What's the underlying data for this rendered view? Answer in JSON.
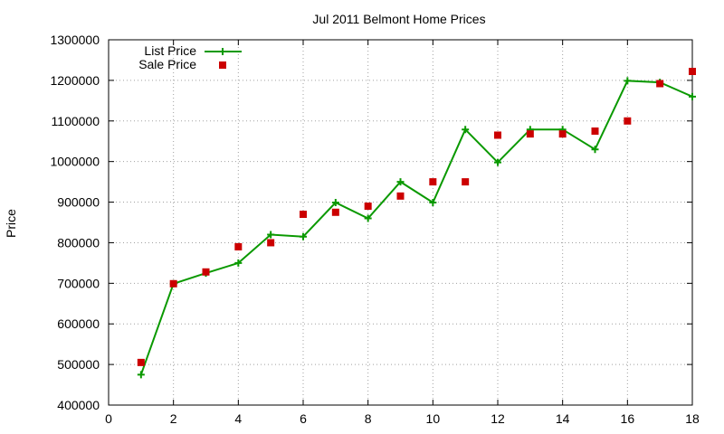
{
  "chart_data": {
    "type": "line",
    "title": "Jul 2011 Belmont Home Prices",
    "xlabel": "",
    "ylabel": "Price",
    "xlim": [
      0,
      18
    ],
    "ylim": [
      400000,
      1300000
    ],
    "x_ticks": [
      "0",
      "2",
      "4",
      "6",
      "8",
      "10",
      "12",
      "14",
      "16",
      "18"
    ],
    "y_ticks": [
      "400000",
      "500000",
      "600000",
      "700000",
      "800000",
      "900000",
      "1000000",
      "1100000",
      "1200000",
      "1300000"
    ],
    "grid": true,
    "legend_position": "top-left",
    "series": [
      {
        "name": "List Price",
        "style": "line-with-plus-markers",
        "color": "#0a9900",
        "points": [
          {
            "x": 1,
            "y": 475000
          },
          {
            "x": 2,
            "y": 699000
          },
          {
            "x": 3,
            "y": 725000
          },
          {
            "x": 4,
            "y": 750000
          },
          {
            "x": 5,
            "y": 820000
          },
          {
            "x": 6,
            "y": 815000
          },
          {
            "x": 7,
            "y": 899000
          },
          {
            "x": 8,
            "y": 860000
          },
          {
            "x": 9,
            "y": 950000
          },
          {
            "x": 10,
            "y": 899000
          },
          {
            "x": 11,
            "y": 1079000
          },
          {
            "x": 12,
            "y": 998000
          },
          {
            "x": 13,
            "y": 1079000
          },
          {
            "x": 14,
            "y": 1079000
          },
          {
            "x": 15,
            "y": 1030000
          },
          {
            "x": 16,
            "y": 1199000
          },
          {
            "x": 17,
            "y": 1195000
          },
          {
            "x": 18,
            "y": 1160000
          }
        ]
      },
      {
        "name": "Sale Price",
        "style": "square-markers",
        "color": "#cc0000",
        "points": [
          {
            "x": 1,
            "y": 505000
          },
          {
            "x": 2,
            "y": 699000
          },
          {
            "x": 3,
            "y": 728000
          },
          {
            "x": 4,
            "y": 790000
          },
          {
            "x": 5,
            "y": 800000
          },
          {
            "x": 6,
            "y": 870000
          },
          {
            "x": 7,
            "y": 875000
          },
          {
            "x": 8,
            "y": 890000
          },
          {
            "x": 9,
            "y": 915000
          },
          {
            "x": 10,
            "y": 950000
          },
          {
            "x": 11,
            "y": 950000
          },
          {
            "x": 12,
            "y": 1065000
          },
          {
            "x": 13,
            "y": 1068000
          },
          {
            "x": 14,
            "y": 1068000
          },
          {
            "x": 15,
            "y": 1075000
          },
          {
            "x": 16,
            "y": 1100000
          },
          {
            "x": 17,
            "y": 1192000
          },
          {
            "x": 18,
            "y": 1222000
          }
        ]
      }
    ]
  }
}
